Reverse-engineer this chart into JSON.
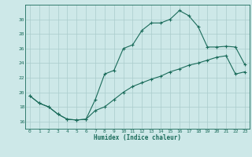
{
  "title": "",
  "xlabel": "Humidex (Indice chaleur)",
  "background_color": "#cde8e8",
  "grid_color": "#aacccc",
  "line_color": "#1a6b5a",
  "xlim": [
    -0.5,
    23.5
  ],
  "ylim": [
    15.0,
    32.0
  ],
  "yticks": [
    16,
    18,
    20,
    22,
    24,
    26,
    28,
    30
  ],
  "xticks": [
    0,
    1,
    2,
    3,
    4,
    5,
    6,
    7,
    8,
    9,
    10,
    11,
    12,
    13,
    14,
    15,
    16,
    17,
    18,
    19,
    20,
    21,
    22,
    23
  ],
  "line1_x": [
    0,
    1,
    2,
    3,
    4,
    5,
    6,
    7,
    8,
    9,
    10,
    11,
    12,
    13,
    14,
    15,
    16,
    17,
    18,
    19,
    20,
    21,
    22,
    23
  ],
  "line1_y": [
    19.5,
    18.5,
    18.0,
    17.0,
    16.3,
    16.2,
    16.3,
    19.0,
    22.5,
    23.0,
    26.0,
    26.5,
    28.5,
    29.5,
    29.5,
    30.0,
    31.2,
    30.5,
    29.0,
    26.2,
    26.2,
    26.3,
    26.2,
    23.8
  ],
  "line2_x": [
    0,
    1,
    2,
    3,
    4,
    5,
    6,
    7,
    8,
    9,
    10,
    11,
    12,
    13,
    14,
    15,
    16,
    17,
    18,
    19,
    20,
    21,
    22,
    23
  ],
  "line2_y": [
    19.5,
    18.5,
    18.0,
    17.0,
    16.3,
    16.2,
    16.3,
    17.5,
    18.0,
    19.0,
    20.0,
    20.8,
    21.3,
    21.8,
    22.2,
    22.8,
    23.2,
    23.7,
    24.0,
    24.4,
    24.8,
    25.0,
    22.5,
    22.8
  ]
}
